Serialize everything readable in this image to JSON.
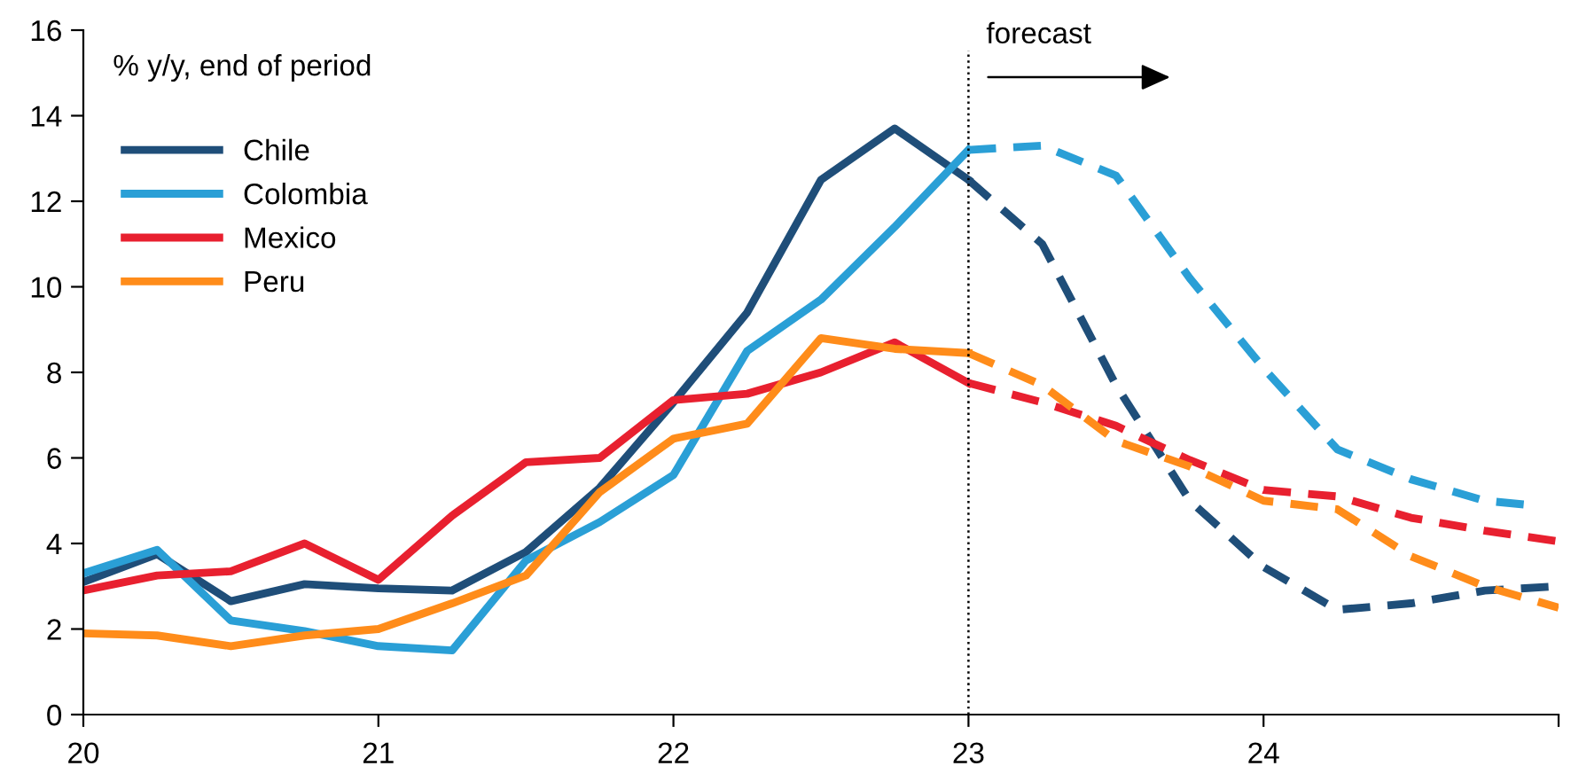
{
  "chart_data": {
    "type": "line",
    "ylabel": "% y/y, end of period",
    "xlim": [
      20,
      25
    ],
    "xticks": [
      20,
      21,
      22,
      23,
      24,
      {
        "value": 25,
        "label": null
      }
    ],
    "ylim": [
      0,
      16
    ],
    "yticks": [
      0,
      2,
      4,
      6,
      8,
      10,
      12,
      14,
      16
    ],
    "grid": false,
    "legend": "left",
    "marker": "none",
    "ref_lines": [
      {
        "axis": "x",
        "value": 23,
        "label": "forecast",
        "color": "#000000",
        "line_style": "dotted"
      }
    ],
    "series": [
      {
        "name": "Chile",
        "color": "#1f4e79",
        "line_style": "solid",
        "x": [
          20,
          20.25,
          20.5,
          20.75,
          21,
          21.25,
          21.5,
          21.75,
          22,
          22.25,
          22.5,
          22.75,
          23
        ],
        "values": [
          3.1,
          3.75,
          2.65,
          3.05,
          2.95,
          2.9,
          3.8,
          5.3,
          7.3,
          9.4,
          12.5,
          13.7,
          12.5
        ]
      },
      {
        "name": "Colombia",
        "color": "#2a9fd6",
        "line_style": "solid",
        "x": [
          20,
          20.25,
          20.5,
          20.75,
          21,
          21.25,
          21.5,
          21.75,
          22,
          22.25,
          22.5,
          22.75,
          23
        ],
        "values": [
          3.3,
          3.85,
          2.2,
          1.95,
          1.6,
          1.5,
          3.6,
          4.5,
          5.6,
          8.5,
          9.7,
          11.4,
          13.2
        ]
      },
      {
        "name": "Mexico",
        "color": "#e8202f",
        "line_style": "solid",
        "x": [
          20,
          20.25,
          20.5,
          20.75,
          21,
          21.25,
          21.5,
          21.75,
          22,
          22.25,
          22.5,
          22.75,
          23
        ],
        "values": [
          2.9,
          3.25,
          3.35,
          4.0,
          3.15,
          4.65,
          5.9,
          6.0,
          7.35,
          7.5,
          8.0,
          8.7,
          7.75
        ]
      },
      {
        "name": "Peru",
        "color": "#ff8c1a",
        "line_style": "solid",
        "x": [
          20,
          20.25,
          20.5,
          20.75,
          21,
          21.25,
          21.5,
          21.75,
          22,
          22.25,
          22.5,
          22.75,
          23
        ],
        "values": [
          1.9,
          1.85,
          1.6,
          1.85,
          2.0,
          2.6,
          3.25,
          5.2,
          6.45,
          6.8,
          8.8,
          8.55,
          8.45
        ]
      },
      {
        "color": "#1f4e79",
        "line_style": "dashed",
        "x": [
          23,
          23.25,
          23.5,
          23.75,
          24,
          24.25,
          24.5,
          24.75,
          25
        ],
        "values": [
          12.5,
          11.0,
          7.7,
          5.0,
          3.45,
          2.45,
          2.6,
          2.9,
          3.0
        ]
      },
      {
        "color": "#2a9fd6",
        "line_style": "dashed",
        "x": [
          23,
          23.25,
          23.5,
          23.75,
          24,
          24.25,
          24.5,
          24.75,
          24.9
        ],
        "values": [
          13.2,
          13.3,
          12.6,
          10.2,
          8.1,
          6.2,
          5.5,
          5.0,
          4.9
        ]
      },
      {
        "color": "#e8202f",
        "line_style": "dashed",
        "x": [
          23,
          23.25,
          23.5,
          23.75,
          24,
          24.25,
          24.5,
          24.75,
          25
        ],
        "values": [
          7.75,
          7.3,
          6.75,
          5.95,
          5.25,
          5.1,
          4.6,
          4.3,
          4.05
        ]
      },
      {
        "color": "#ff8c1a",
        "line_style": "dashed",
        "x": [
          23,
          23.25,
          23.5,
          23.75,
          24,
          24.25,
          24.5,
          24.75,
          25
        ],
        "values": [
          8.45,
          7.7,
          6.4,
          5.8,
          5.0,
          4.8,
          3.7,
          3.0,
          2.5
        ]
      }
    ]
  }
}
